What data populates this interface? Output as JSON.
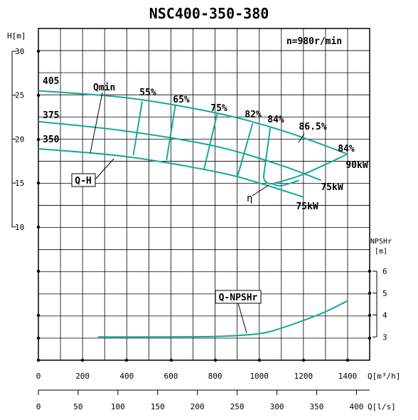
{
  "chart_data": {
    "type": "line",
    "title": "NSC400-350-380",
    "speed_label": "n=980r/min",
    "h_axis": {
      "label": "H[m]",
      "ticks": [
        "30",
        "25",
        "20",
        "15",
        "10"
      ],
      "range": [
        10,
        30
      ]
    },
    "npsh_axis": {
      "label_top": "NPSHr",
      "label_unit": "[m]",
      "ticks": [
        "6",
        "5",
        "4",
        "3"
      ],
      "range": [
        3,
        6
      ]
    },
    "x_axis_flow_m3h": {
      "label": "Q[m³/h]",
      "ticks": [
        "0",
        "200",
        "400",
        "600",
        "800",
        "1000",
        "1200",
        "1400"
      ],
      "range": [
        0,
        1500
      ]
    },
    "x_axis_flow_ls": {
      "label": "Q[l/s]",
      "ticks": [
        "0",
        "50",
        "100",
        "150",
        "200",
        "250",
        "300",
        "350",
        "400"
      ],
      "range": [
        0,
        416.7
      ]
    },
    "qh_curves": [
      {
        "name": "405",
        "x": [
          0,
          400,
          800,
          1100,
          1400
        ],
        "y": [
          25.5,
          24.7,
          23.0,
          21.0,
          18.3
        ]
      },
      {
        "name": "375",
        "x": [
          0,
          400,
          800,
          1100,
          1280
        ],
        "y": [
          22.0,
          20.9,
          19.2,
          17.0,
          15.3
        ]
      },
      {
        "name": "350",
        "x": [
          0,
          400,
          800,
          1000,
          1200
        ],
        "y": [
          18.9,
          18.0,
          16.3,
          15.0,
          13.4
        ]
      }
    ],
    "efficiency_lines": [
      {
        "label": "55%",
        "x": [
          470,
          430
        ],
        "y": [
          24.3,
          18.2
        ]
      },
      {
        "label": "65%",
        "x": [
          620,
          580
        ],
        "y": [
          23.8,
          17.6
        ]
      },
      {
        "label": "75%",
        "x": [
          810,
          750
        ],
        "y": [
          22.9,
          16.6
        ]
      },
      {
        "label": "82%",
        "x": [
          970,
          900
        ],
        "y": [
          21.8,
          15.6
        ]
      },
      {
        "label": "84%",
        "x": [
          1050,
          1020
        ],
        "y": [
          21.3,
          15.8
        ],
        "hook": [
          1060,
          14.9
        ]
      }
    ],
    "efficiency_labels": [
      "55%",
      "65%",
      "75%",
      "82%",
      "84%",
      "86.5%",
      "84%"
    ],
    "bep_label": "86.5%",
    "power_labels": [
      "90kW",
      "75kW",
      "75kW"
    ],
    "curve_labels": {
      "qmin": "Qmin",
      "qh": "Q-H",
      "eta": "η",
      "npsh": "Q-NPSHr"
    },
    "npsh_curve": {
      "name": "Q-NPSHr",
      "x": [
        270,
        500,
        800,
        1000,
        1100,
        1200,
        1300,
        1400
      ],
      "y": [
        3.0,
        3.0,
        3.02,
        3.15,
        3.4,
        3.75,
        4.15,
        4.65
      ]
    },
    "grid": true,
    "colors": {
      "curve": "#17a89a",
      "grid": "#000000"
    }
  }
}
